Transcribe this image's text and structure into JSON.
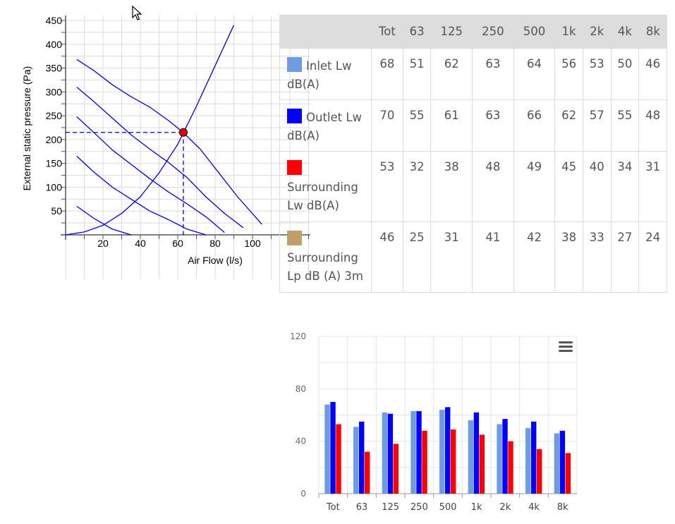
{
  "fan_chart": {
    "xlabel": "Air Flow (l/s)",
    "ylabel": "External static pressure (Pa)",
    "x_ticks": [
      "20",
      "40",
      "60",
      "80",
      "100"
    ],
    "y_ticks": [
      "50",
      "100",
      "150",
      "200",
      "250",
      "300",
      "350",
      "400",
      "450"
    ]
  },
  "table": {
    "headers": [
      "",
      "Tot",
      "63",
      "125",
      "250",
      "500",
      "1k",
      "2k",
      "4k",
      "8k"
    ],
    "rows": [
      {
        "label": "Inlet Lw dB(A)",
        "color": "#6f9be0",
        "values": [
          "68",
          "51",
          "62",
          "63",
          "64",
          "56",
          "53",
          "50",
          "46"
        ]
      },
      {
        "label": "Outlet Lw dB(A)",
        "color": "#0000ff",
        "values": [
          "70",
          "55",
          "61",
          "63",
          "66",
          "62",
          "57",
          "55",
          "48"
        ]
      },
      {
        "label": "Surrounding Lw dB(A)",
        "color": "#ff0000",
        "values": [
          "53",
          "32",
          "38",
          "48",
          "49",
          "45",
          "40",
          "34",
          "31"
        ]
      },
      {
        "label": "Surrounding Lp dB (A) 3m",
        "color": "#bfa06b",
        "values": [
          "46",
          "25",
          "31",
          "41",
          "42",
          "38",
          "33",
          "27",
          "24"
        ]
      }
    ]
  },
  "chart_data": [
    {
      "type": "line",
      "xlabel": "Air Flow (l/s)",
      "ylabel": "External static pressure (Pa)",
      "xlim": [
        0,
        130
      ],
      "ylim": [
        0,
        450
      ],
      "grid": true,
      "series": [
        {
          "x": [
            0,
            10,
            20,
            30,
            40,
            50,
            60,
            70,
            80,
            90
          ],
          "y": [
            0,
            6,
            20,
            45,
            80,
            130,
            190,
            270,
            355,
            440
          ]
        },
        {
          "x": [
            6,
            15,
            25,
            35,
            45,
            55,
            62,
            72,
            82,
            92,
            105
          ],
          "y": [
            368,
            345,
            315,
            290,
            268,
            240,
            218,
            180,
            130,
            80,
            22
          ]
        },
        {
          "x": [
            6,
            15,
            25,
            35,
            45,
            55,
            65,
            75,
            85,
            95
          ],
          "y": [
            310,
            280,
            245,
            210,
            180,
            152,
            120,
            80,
            45,
            15
          ]
        },
        {
          "x": [
            6,
            15,
            25,
            35,
            45,
            55,
            65,
            75,
            85
          ],
          "y": [
            248,
            215,
            178,
            148,
            118,
            90,
            65,
            38,
            5
          ]
        },
        {
          "x": [
            6,
            15,
            25,
            35,
            45,
            55,
            65,
            75
          ],
          "y": [
            165,
            132,
            100,
            75,
            50,
            32,
            12,
            0
          ]
        },
        {
          "x": [
            6,
            15,
            25,
            35
          ],
          "y": [
            60,
            35,
            12,
            0
          ]
        }
      ],
      "operating_point": {
        "x": 63,
        "y": 215
      }
    },
    {
      "type": "bar",
      "categories": [
        "Tot",
        "63",
        "125",
        "250",
        "500",
        "1k",
        "2k",
        "4k",
        "8k"
      ],
      "ylim": [
        0,
        120
      ],
      "y_ticks": [
        "0",
        "40",
        "80",
        "120"
      ],
      "series": [
        {
          "color": "#6f9be0",
          "values": [
            68,
            51,
            62,
            63,
            64,
            56,
            53,
            50,
            46
          ]
        },
        {
          "color": "#0000ff",
          "values": [
            70,
            55,
            61,
            63,
            66,
            62,
            57,
            55,
            48
          ]
        },
        {
          "color": "#ff0000",
          "values": [
            53,
            32,
            38,
            48,
            49,
            45,
            40,
            34,
            31
          ]
        }
      ]
    }
  ],
  "icons": {
    "menu": "hamburger-menu-icon",
    "cursor": "mouse-pointer-icon"
  }
}
